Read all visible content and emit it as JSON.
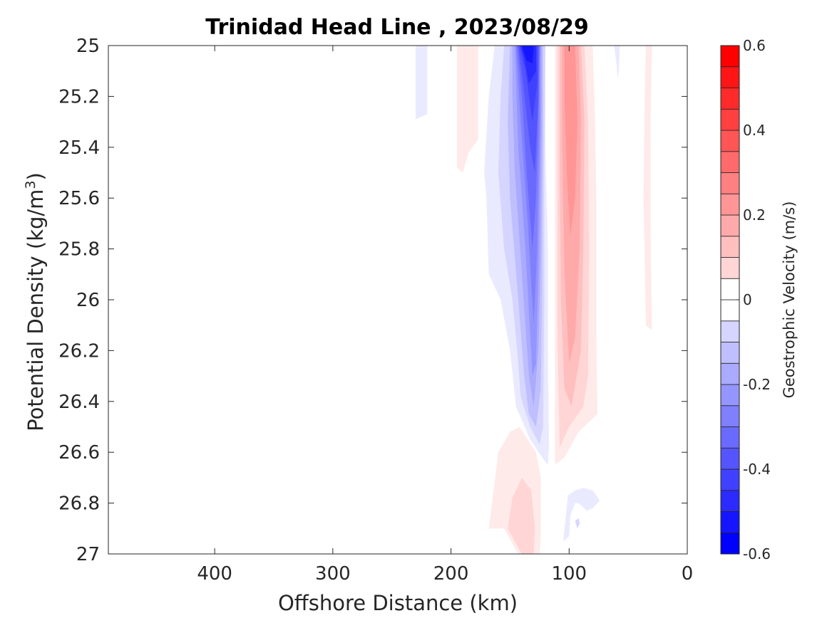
{
  "chart_data": {
    "type": "heatmap",
    "title": "Trinidad Head Line , 2023/08/29",
    "xlabel": "Offshore Distance (km)",
    "ylabel_prefix": "Potential Density (kg/m",
    "ylabel_sup": "3",
    "ylabel_suffix": ")",
    "xlim": [
      490,
      0
    ],
    "x_reversed": true,
    "ylim": [
      25,
      27
    ],
    "y_reversed": true,
    "x_ticks": [
      400,
      300,
      200,
      100,
      0
    ],
    "x_tick_labels": [
      "400",
      "300",
      "200",
      "100",
      "0"
    ],
    "y_ticks": [
      25,
      25.2,
      25.4,
      25.6,
      25.8,
      26,
      26.2,
      26.4,
      26.6,
      26.8,
      27
    ],
    "y_tick_labels": [
      "25",
      "25.2",
      "25.4",
      "25.6",
      "25.8",
      "26",
      "26.2",
      "26.4",
      "26.6",
      "26.8",
      "27"
    ],
    "grid": false,
    "colorbar": {
      "label": "Geostrophic Velocity (m/s)",
      "clim": [
        -0.6,
        0.6
      ],
      "levels": [
        -0.6,
        -0.55,
        -0.5,
        -0.45,
        -0.4,
        -0.35,
        -0.3,
        -0.25,
        -0.2,
        -0.15,
        -0.1,
        -0.05,
        0,
        0.05,
        0.1,
        0.15,
        0.2,
        0.25,
        0.3,
        0.35,
        0.4,
        0.45,
        0.5,
        0.55,
        0.6
      ],
      "ticks": [
        -0.6,
        -0.4,
        -0.2,
        0,
        0.2,
        0.4,
        0.6
      ],
      "tick_labels": [
        "-0.6",
        "-0.4",
        "-0.2",
        "0",
        "0.2",
        "0.4",
        "0.6"
      ],
      "color_min": "#0000ff",
      "color_zero": "#ffffff",
      "color_max": "#ff0000"
    },
    "contour_regions": [
      {
        "level": -0.05,
        "points": [
          [
            230,
            25
          ],
          [
            220,
            25
          ],
          [
            220,
            25.27
          ],
          [
            230,
            25.29
          ]
        ]
      },
      {
        "level": 0.05,
        "points": [
          [
            195,
            25
          ],
          [
            177,
            25
          ],
          [
            177,
            25.37
          ],
          [
            185,
            25.42
          ],
          [
            190,
            25.5
          ],
          [
            195,
            25.48
          ]
        ]
      },
      {
        "level": -0.05,
        "points": [
          [
            163,
            25
          ],
          [
            120,
            25
          ],
          [
            120,
            25.4
          ],
          [
            118,
            25.8
          ],
          [
            118,
            26.2
          ],
          [
            117,
            26.58
          ],
          [
            118,
            26.65
          ],
          [
            123,
            26.62
          ],
          [
            133,
            26.55
          ],
          [
            145,
            26.42
          ],
          [
            150,
            26.2
          ],
          [
            158,
            26.0
          ],
          [
            168,
            25.9
          ],
          [
            170,
            25.6
          ],
          [
            172,
            25.5
          ],
          [
            168,
            25.2
          ]
        ]
      },
      {
        "level": -0.1,
        "points": [
          [
            155,
            25
          ],
          [
            120,
            25
          ],
          [
            121,
            25.5
          ],
          [
            121,
            26.0
          ],
          [
            122,
            26.5
          ],
          [
            125,
            26.57
          ],
          [
            133,
            26.5
          ],
          [
            141,
            26.38
          ],
          [
            144,
            26.2
          ],
          [
            148,
            26.0
          ],
          [
            155,
            25.8
          ],
          [
            160,
            25.5
          ],
          [
            158,
            25.2
          ]
        ]
      },
      {
        "level": -0.15,
        "points": [
          [
            150,
            25
          ],
          [
            122,
            25
          ],
          [
            122,
            25.4
          ],
          [
            123,
            26.0
          ],
          [
            124,
            26.35
          ],
          [
            128,
            26.5
          ],
          [
            134,
            26.45
          ],
          [
            138,
            26.3
          ],
          [
            143,
            26.0
          ],
          [
            150,
            25.6
          ],
          [
            152,
            25.3
          ]
        ]
      },
      {
        "level": -0.2,
        "points": [
          [
            148,
            25
          ],
          [
            123,
            25
          ],
          [
            123,
            25.3
          ],
          [
            124,
            25.8
          ],
          [
            126,
            26.2
          ],
          [
            130,
            26.42
          ],
          [
            134,
            26.3
          ],
          [
            140,
            25.9
          ],
          [
            146,
            25.5
          ],
          [
            148,
            25.2
          ]
        ]
      },
      {
        "level": -0.25,
        "points": [
          [
            146,
            25
          ],
          [
            124,
            25
          ],
          [
            124,
            25.3
          ],
          [
            126,
            25.9
          ],
          [
            128,
            26.25
          ],
          [
            131,
            26.3
          ],
          [
            137,
            25.8
          ],
          [
            143,
            25.4
          ]
        ]
      },
      {
        "level": -0.3,
        "points": [
          [
            145,
            25
          ],
          [
            125,
            25
          ],
          [
            125,
            25.3
          ],
          [
            127,
            25.8
          ],
          [
            130,
            26.1
          ],
          [
            135,
            25.7
          ],
          [
            141,
            25.3
          ]
        ]
      },
      {
        "level": -0.35,
        "points": [
          [
            144,
            25
          ],
          [
            125,
            25
          ],
          [
            126,
            25.25
          ],
          [
            128,
            25.6
          ],
          [
            131,
            25.8
          ],
          [
            136,
            25.5
          ],
          [
            140,
            25.2
          ]
        ]
      },
      {
        "level": -0.4,
        "points": [
          [
            143,
            25
          ],
          [
            126,
            25
          ],
          [
            126,
            25.2
          ],
          [
            129,
            25.5
          ],
          [
            133,
            25.4
          ],
          [
            139,
            25.15
          ]
        ]
      },
      {
        "level": -0.45,
        "points": [
          [
            142,
            25
          ],
          [
            127,
            25
          ],
          [
            127,
            25.15
          ],
          [
            131,
            25.3
          ],
          [
            137,
            25.1
          ]
        ]
      },
      {
        "level": -0.5,
        "points": [
          [
            141,
            25
          ],
          [
            128,
            25
          ],
          [
            128,
            25.1
          ],
          [
            134,
            25.15
          ],
          [
            138,
            25.05
          ]
        ]
      },
      {
        "level": -0.55,
        "points": [
          [
            140,
            25
          ],
          [
            130,
            25
          ],
          [
            131,
            25.07
          ],
          [
            136,
            25.06
          ]
        ]
      },
      {
        "level": 0.05,
        "points": [
          [
            112,
            25
          ],
          [
            103,
            25
          ],
          [
            90,
            25
          ],
          [
            80,
            25.0
          ],
          [
            78,
            25.3
          ],
          [
            77,
            25.6
          ],
          [
            77,
            25.9
          ],
          [
            77,
            26.15
          ],
          [
            76,
            26.45
          ],
          [
            83,
            26.48
          ],
          [
            92,
            26.52
          ],
          [
            104,
            26.62
          ],
          [
            112,
            26.65
          ],
          [
            112,
            26.3
          ],
          [
            112,
            25.7
          ],
          [
            112,
            25.2
          ]
        ]
      },
      {
        "level": 0.1,
        "points": [
          [
            110,
            25
          ],
          [
            87,
            25
          ],
          [
            84,
            25.3
          ],
          [
            83,
            25.8
          ],
          [
            84,
            26.3
          ],
          [
            88,
            26.42
          ],
          [
            100,
            26.5
          ],
          [
            108,
            26.58
          ],
          [
            110,
            26.1
          ],
          [
            110,
            25.5
          ]
        ]
      },
      {
        "level": 0.15,
        "points": [
          [
            108,
            25
          ],
          [
            90,
            25
          ],
          [
            87,
            25.3
          ],
          [
            88,
            25.8
          ],
          [
            90,
            26.2
          ],
          [
            98,
            26.42
          ],
          [
            104,
            26.35
          ],
          [
            107,
            26.0
          ],
          [
            108,
            25.5
          ]
        ]
      },
      {
        "level": 0.2,
        "points": [
          [
            106,
            25
          ],
          [
            92,
            25
          ],
          [
            90,
            25.3
          ],
          [
            91,
            25.8
          ],
          [
            95,
            26.15
          ],
          [
            100,
            26.25
          ],
          [
            104,
            25.9
          ],
          [
            106,
            25.4
          ]
        ]
      },
      {
        "level": 0.25,
        "points": [
          [
            104,
            25
          ],
          [
            95,
            25
          ],
          [
            93,
            25.3
          ],
          [
            95,
            25.6
          ],
          [
            99,
            25.75
          ],
          [
            102,
            25.5
          ],
          [
            104,
            25.2
          ]
        ]
      },
      {
        "level": -0.05,
        "points": [
          [
            62,
            25
          ],
          [
            57,
            25
          ],
          [
            58,
            25.1
          ],
          [
            59,
            25.13
          ],
          [
            60,
            25.07
          ]
        ]
      },
      {
        "level": 0.05,
        "points": [
          [
            35,
            25
          ],
          [
            30,
            25
          ],
          [
            31,
            25.3
          ],
          [
            31,
            25.7
          ],
          [
            30,
            26.12
          ],
          [
            35,
            26.1
          ],
          [
            37,
            25.6
          ],
          [
            36,
            25.2
          ]
        ]
      },
      {
        "level": 0.05,
        "points": [
          [
            168,
            26.9
          ],
          [
            155,
            26.9
          ],
          [
            143,
            27
          ],
          [
            125,
            27
          ],
          [
            124,
            26.92
          ],
          [
            124,
            26.82
          ],
          [
            124,
            26.7
          ],
          [
            128,
            26.6
          ],
          [
            142,
            26.5
          ],
          [
            150,
            26.52
          ],
          [
            160,
            26.6
          ]
        ]
      },
      {
        "level": 0.1,
        "points": [
          [
            152,
            26.9
          ],
          [
            140,
            27
          ],
          [
            130,
            27
          ],
          [
            129,
            26.9
          ],
          [
            132,
            26.75
          ],
          [
            140,
            26.7
          ],
          [
            148,
            26.78
          ]
        ]
      },
      {
        "level": -0.05,
        "points": [
          [
            105,
            26.95
          ],
          [
            100,
            26.93
          ],
          [
            99,
            26.85
          ],
          [
            95,
            26.8
          ],
          [
            92,
            26.8
          ],
          [
            85,
            26.83
          ],
          [
            80,
            26.82
          ],
          [
            74,
            26.79
          ],
          [
            80,
            26.75
          ],
          [
            88,
            26.74
          ],
          [
            95,
            26.75
          ],
          [
            101,
            26.77
          ]
        ]
      },
      {
        "level": -0.1,
        "points": [
          [
            93,
            26.9
          ],
          [
            91,
            26.88
          ],
          [
            92,
            26.86
          ],
          [
            95,
            26.87
          ]
        ]
      }
    ]
  }
}
